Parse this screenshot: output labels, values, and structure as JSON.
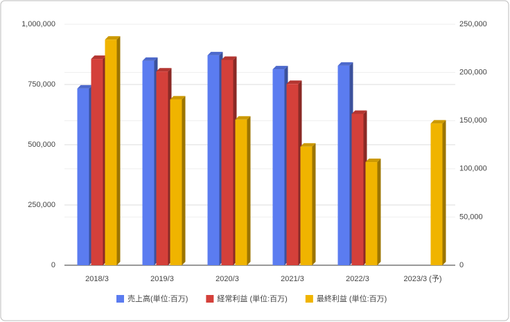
{
  "chart_data": {
    "type": "bar",
    "categories": [
      "2018/3",
      "2019/3",
      "2020/3",
      "2021/3",
      "2022/3",
      "2023/3 (予)"
    ],
    "series": [
      {
        "name": "売上高(単位:百万)",
        "color": "#5b7cf0",
        "values": [
          733000,
          848000,
          871000,
          813000,
          828000,
          null
        ]
      },
      {
        "name": "経常利益 (単位:百万)",
        "color": "#d4403a",
        "axis": "y2",
        "values": [
          214000,
          201000,
          213000,
          188000,
          157000,
          null
        ]
      },
      {
        "name": "最終利益 (単位:百万)",
        "color": "#f0b400",
        "axis": "y2",
        "values": [
          234000,
          172000,
          151000,
          123000,
          107000,
          147000
        ]
      }
    ],
    "ylim": [
      0,
      1000000
    ],
    "yticks": [
      0,
      {
        "value": 250000,
        "label": "250,000"
      },
      {
        "value": 500000,
        "label": "500,000"
      },
      {
        "value": 750000,
        "label": "750,000"
      },
      {
        "value": 1000000,
        "label": "1,000,000"
      }
    ],
    "y2lim": [
      0,
      250000
    ],
    "y2ticks": [
      0,
      {
        "value": 50000,
        "label": "50,000"
      },
      {
        "value": 100000,
        "label": "100,000"
      },
      {
        "value": 150000,
        "label": "150,000"
      },
      {
        "value": 200000,
        "label": "200,000"
      },
      {
        "value": 250000,
        "label": "250,000"
      }
    ],
    "grid": true,
    "legend": "bottom"
  }
}
